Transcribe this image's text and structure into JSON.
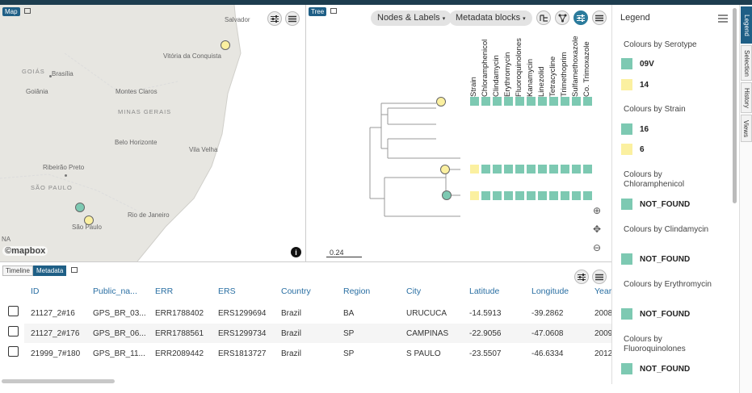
{
  "map": {
    "tab_label": "Map",
    "attribution": "©mapbox",
    "info_label": "i",
    "cities": [
      {
        "name": "Salvador"
      },
      {
        "name": "Vitória da Conquista"
      },
      {
        "name": "GOIÁS"
      },
      {
        "name": "Brasília"
      },
      {
        "name": "Goiânia"
      },
      {
        "name": "Montes Claros"
      },
      {
        "name": "MINAS GERAIS"
      },
      {
        "name": "Belo Horizonte"
      },
      {
        "name": "Vila Velha"
      },
      {
        "name": "Ribeirão Preto"
      },
      {
        "name": "SÃO PAULO"
      },
      {
        "name": "Rio de Janeiro"
      },
      {
        "name": "São Paulo"
      },
      {
        "name": "NA"
      }
    ]
  },
  "tree": {
    "tab_label": "Tree",
    "nodes_labels": "Nodes & Labels",
    "metadata_blocks": "Metadata blocks",
    "scale_label": "0.24",
    "columns": [
      "Strain",
      "Chloramphenicol",
      "Clindamycin",
      "Erythromycin",
      "Fluoroquinolones",
      "Kanamycin",
      "Linezolid",
      "Tetracycline",
      "Trimethoprim",
      "Sulfamethoxazole",
      "Co. Trimoxazole"
    ],
    "zoom_in": "⊕",
    "pan": "✥",
    "zoom_out": "⊖"
  },
  "legend": {
    "title": "Legend",
    "groups": [
      {
        "title": "Colours by Serotype",
        "entries": [
          {
            "label": "09V",
            "color": "#7dc9b2"
          },
          {
            "label": "14",
            "color": "#fbf0a0"
          }
        ]
      },
      {
        "title": "Colours by Strain",
        "entries": [
          {
            "label": "16",
            "color": "#7dc9b2"
          },
          {
            "label": "6",
            "color": "#fbf0a0"
          }
        ]
      },
      {
        "title": "Colours by Chloramphenicol",
        "entries": [
          {
            "label": "NOT_FOUND",
            "color": "#7dc9b2"
          }
        ]
      },
      {
        "title": "Colours by Clindamycin",
        "entries": [
          {
            "label": "NOT_FOUND",
            "color": "#7dc9b2"
          }
        ]
      },
      {
        "title": "Colours by Erythromycin",
        "entries": [
          {
            "label": "NOT_FOUND",
            "color": "#7dc9b2"
          }
        ]
      },
      {
        "title": "Colours by Fluoroquinolones",
        "entries": [
          {
            "label": "NOT_FOUND",
            "color": "#7dc9b2"
          }
        ]
      }
    ]
  },
  "side_tabs": [
    "Legend",
    "Selection",
    "History",
    "Views"
  ],
  "table": {
    "tabs": [
      "Timeline",
      "Metadata"
    ],
    "columns": [
      "ID",
      "Public_na...",
      "ERR",
      "ERS",
      "Country",
      "Region",
      "City",
      "Latitude",
      "Longitude",
      "Year"
    ],
    "rows": [
      [
        "21127_2#16",
        "GPS_BR_03...",
        "ERR1788402",
        "ERS1299694",
        "Brazil",
        "BA",
        "URUCUCA",
        "-14.5913",
        "-39.2862",
        "2008"
      ],
      [
        "21127_2#176",
        "GPS_BR_06...",
        "ERR1788561",
        "ERS1299734",
        "Brazil",
        "SP",
        "CAMPINAS",
        "-22.9056",
        "-47.0608",
        "2009"
      ],
      [
        "21999_7#180",
        "GPS_BR_11...",
        "ERR2089442",
        "ERS1813727",
        "Brazil",
        "SP",
        "S PAULO",
        "-23.5507",
        "-46.6334",
        "2012"
      ]
    ]
  },
  "colors": {
    "teal": "#7dc9b2",
    "yellow": "#fbf0a0",
    "accent": "#1f5f86",
    "header_text": "#2a6fa3"
  }
}
